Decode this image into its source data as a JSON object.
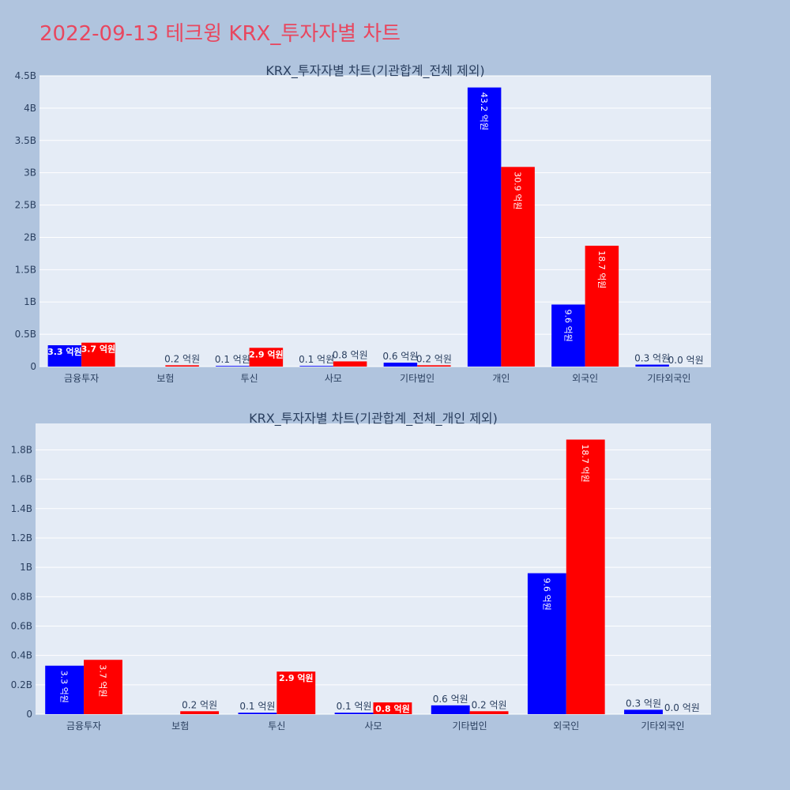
{
  "page": {
    "title": "2022-09-13 테크윙 KRX_투자자별 차트"
  },
  "colors": {
    "series_a": "#0000ff",
    "series_b": "#ff0000",
    "title": "#e8475f"
  },
  "chart_data": [
    {
      "type": "bar",
      "title": "KRX_투자자별 차트(기관합계_전체 제외)",
      "xlabel": "",
      "ylabel": "",
      "categories": [
        "금융투자",
        "보험",
        "투신",
        "사모",
        "기타법인",
        "개인",
        "외국인",
        "기타외국인"
      ],
      "ylim": [
        0,
        4.5
      ],
      "yticks": [
        0,
        0.5,
        1,
        1.5,
        2,
        2.5,
        3,
        3.5,
        4,
        4.5
      ],
      "ytick_labels": [
        "0",
        "0.5B",
        "1B",
        "1.5B",
        "2B",
        "2.5B",
        "3B",
        "3.5B",
        "4B",
        "4.5B"
      ],
      "grid": true,
      "series": [
        {
          "values": [
            0.33,
            0,
            0.01,
            0.01,
            0.06,
            4.32,
            0.96,
            0.03
          ],
          "labels": [
            "3.3 억원",
            "",
            "0.1 억원",
            "0.1 억원",
            "0.6 억원",
            "43.2 억원",
            "9.6 억원",
            "0.3 억원"
          ]
        },
        {
          "values": [
            0.37,
            0.02,
            0.29,
            0.08,
            0.02,
            3.09,
            1.87,
            0.0
          ],
          "labels": [
            "3.7 억원",
            "0.2 억원",
            "2.9 억원",
            "0.8 억원",
            "0.2 억원",
            "30.9 억원",
            "18.7 억원",
            "0.0 억원"
          ]
        }
      ]
    },
    {
      "type": "bar",
      "title": "KRX_투자자별 차트(기관합계_전체_개인 제외)",
      "xlabel": "",
      "ylabel": "",
      "categories": [
        "금융투자",
        "보험",
        "투신",
        "사모",
        "기타법인",
        "외국인",
        "기타외국인"
      ],
      "ylim": [
        0,
        1.98
      ],
      "yticks": [
        0,
        0.2,
        0.4,
        0.6,
        0.8,
        1,
        1.2,
        1.4,
        1.6,
        1.8
      ],
      "ytick_labels": [
        "0",
        "0.2B",
        "0.4B",
        "0.6B",
        "0.8B",
        "1B",
        "1.2B",
        "1.4B",
        "1.6B",
        "1.8B"
      ],
      "grid": true,
      "series": [
        {
          "values": [
            0.33,
            0,
            0.01,
            0.01,
            0.06,
            0.96,
            0.03
          ],
          "labels": [
            "3.3 억원",
            "",
            "0.1 억원",
            "0.1 억원",
            "0.6 억원",
            "9.6 억원",
            "0.3 억원"
          ]
        },
        {
          "values": [
            0.37,
            0.02,
            0.29,
            0.08,
            0.02,
            1.87,
            0.0
          ],
          "labels": [
            "3.7 억원",
            "0.2 억원",
            "2.9 억원",
            "0.8 억원",
            "0.2 억원",
            "18.7 억원",
            "0.0 억원"
          ]
        }
      ]
    }
  ]
}
